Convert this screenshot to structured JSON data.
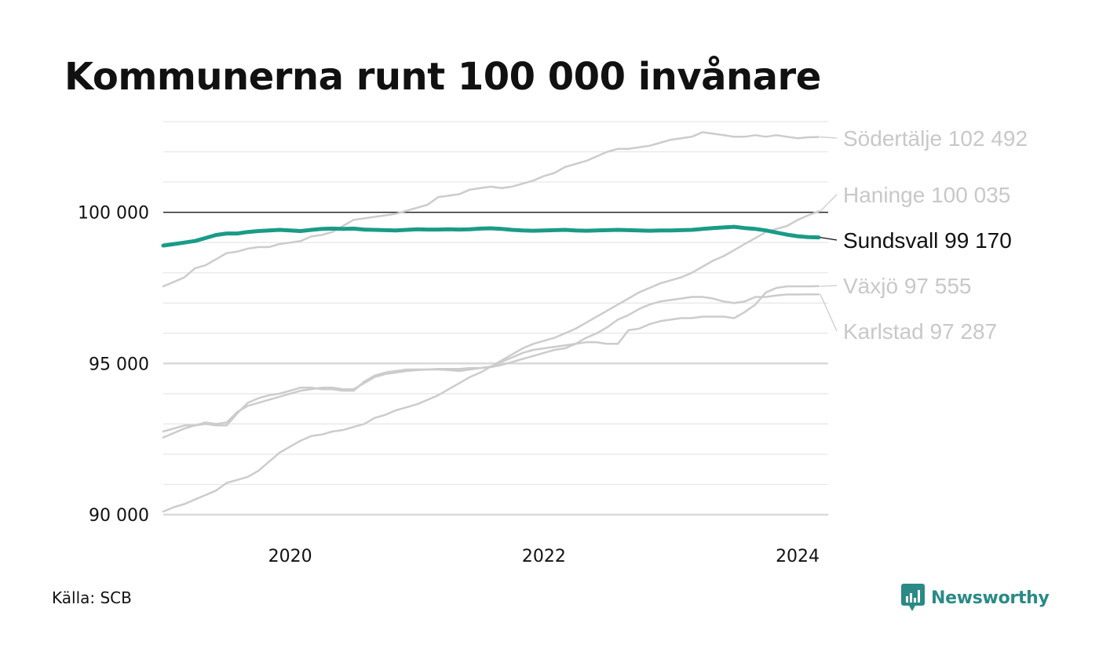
{
  "chart_data": {
    "type": "line",
    "title": "Kommunerna runt 100 000 invånare",
    "xlabel": "",
    "ylabel": "",
    "x_start": "2019-01",
    "x_end": "2024-03",
    "x_ticks": [
      "2020",
      "2022",
      "2024"
    ],
    "ylim": [
      90000,
      102800
    ],
    "y_ticks": [
      {
        "value": 90000,
        "label": "90 000"
      },
      {
        "value": 95000,
        "label": "95 000"
      },
      {
        "value": 100000,
        "label": "100 000"
      }
    ],
    "reference_line": 100000,
    "grid": true,
    "series": [
      {
        "name": "Södertälje",
        "label": "Södertälje 102 492",
        "color": "#cccccc",
        "highlight": false,
        "values": [
          97550,
          97700,
          97850,
          98150,
          98250,
          98450,
          98650,
          98700,
          98800,
          98850,
          98850,
          98950,
          99000,
          99050,
          99200,
          99250,
          99350,
          99550,
          99750,
          99800,
          99850,
          99900,
          99950,
          100050,
          100150,
          100250,
          100500,
          100550,
          100600,
          100750,
          100800,
          100850,
          100800,
          100850,
          100950,
          101050,
          101200,
          101300,
          101500,
          101600,
          101700,
          101850,
          102000,
          102100,
          102100,
          102150,
          102200,
          102300,
          102400,
          102450,
          102500,
          102650,
          102600,
          102550,
          102500,
          102500,
          102550,
          102500,
          102550,
          102500,
          102450,
          102480,
          102492
        ]
      },
      {
        "name": "Haninge",
        "label": "Haninge 100 035",
        "color": "#cccccc",
        "highlight": false,
        "values": [
          90100,
          90250,
          90350,
          90500,
          90650,
          90800,
          91050,
          91150,
          91250,
          91450,
          91750,
          92050,
          92250,
          92450,
          92600,
          92650,
          92750,
          92800,
          92900,
          93000,
          93200,
          93300,
          93450,
          93550,
          93650,
          93800,
          93950,
          94150,
          94350,
          94550,
          94700,
          94900,
          95100,
          95300,
          95500,
          95650,
          95750,
          95850,
          96000,
          96150,
          96350,
          96550,
          96750,
          96950,
          97150,
          97350,
          97500,
          97650,
          97750,
          97850,
          98000,
          98200,
          98400,
          98550,
          98750,
          98950,
          99150,
          99350,
          99450,
          99550,
          99750,
          99900,
          100035
        ]
      },
      {
        "name": "Sundsvall",
        "label": "Sundsvall  99 170",
        "color": "#1a9b88",
        "highlight": true,
        "values": [
          98900,
          98950,
          99000,
          99050,
          99150,
          99250,
          99300,
          99300,
          99350,
          99380,
          99400,
          99420,
          99400,
          99380,
          99420,
          99450,
          99460,
          99450,
          99460,
          99430,
          99420,
          99410,
          99400,
          99420,
          99440,
          99430,
          99430,
          99440,
          99430,
          99440,
          99460,
          99470,
          99450,
          99420,
          99400,
          99390,
          99400,
          99410,
          99420,
          99400,
          99390,
          99400,
          99410,
          99420,
          99410,
          99400,
          99390,
          99400,
          99400,
          99410,
          99420,
          99450,
          99480,
          99500,
          99520,
          99480,
          99450,
          99400,
          99330,
          99260,
          99210,
          99180,
          99170
        ]
      },
      {
        "name": "Växjö",
        "label": "Växjö  97 555",
        "color": "#cccccc",
        "highlight": false,
        "values": [
          92750,
          92850,
          92950,
          92950,
          93000,
          92950,
          92950,
          93350,
          93700,
          93850,
          93950,
          94000,
          94100,
          94200,
          94200,
          94150,
          94150,
          94100,
          94100,
          94400,
          94600,
          94700,
          94750,
          94800,
          94800,
          94800,
          94800,
          94780,
          94750,
          94800,
          94850,
          94900,
          95050,
          95200,
          95350,
          95450,
          95500,
          95550,
          95600,
          95650,
          95700,
          95700,
          95650,
          95650,
          96100,
          96150,
          96300,
          96400,
          96450,
          96500,
          96500,
          96550,
          96550,
          96550,
          96500,
          96700,
          96950,
          97350,
          97500,
          97550,
          97550,
          97550,
          97555
        ]
      },
      {
        "name": "Karlstad",
        "label": "Karlstad  97 287",
        "color": "#cccccc",
        "highlight": false,
        "values": [
          92550,
          92700,
          92850,
          92950,
          93050,
          93000,
          93050,
          93400,
          93600,
          93700,
          93800,
          93900,
          94000,
          94100,
          94150,
          94200,
          94200,
          94150,
          94150,
          94350,
          94550,
          94650,
          94700,
          94750,
          94780,
          94800,
          94820,
          94820,
          94820,
          94850,
          94850,
          94880,
          94950,
          95050,
          95150,
          95250,
          95350,
          95450,
          95500,
          95650,
          95850,
          96000,
          96200,
          96450,
          96600,
          96800,
          96950,
          97050,
          97100,
          97150,
          97200,
          97200,
          97150,
          97050,
          97000,
          97050,
          97200,
          97200,
          97250,
          97280,
          97280,
          97285,
          97287
        ]
      }
    ],
    "source": "Källa: SCB",
    "brand": "Newsworthy"
  }
}
